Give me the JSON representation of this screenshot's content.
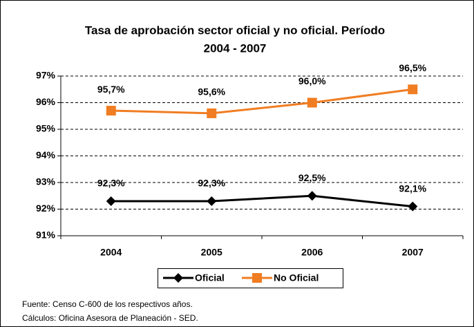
{
  "chart_data": {
    "type": "line",
    "title": "Tasa de aprobación sector oficial y no oficial. Período",
    "subtitle": "2004 - 2007",
    "categories": [
      "2004",
      "2005",
      "2006",
      "2007"
    ],
    "series": [
      {
        "name": "Oficial",
        "color": "#000000",
        "marker": "diamond",
        "values": [
          92.3,
          92.3,
          92.5,
          92.1
        ],
        "value_labels": [
          "92,3%",
          "92,3%",
          "92,5%",
          "92,1%"
        ]
      },
      {
        "name": "No Oficial",
        "color": "#f07d22",
        "marker": "square",
        "values": [
          95.7,
          95.6,
          96.0,
          96.5
        ],
        "value_labels": [
          "95,7%",
          "95,6%",
          "96,0%",
          "96,5%"
        ]
      }
    ],
    "ylim": [
      91,
      97
    ],
    "yticks": [
      {
        "value": 91,
        "label": "91%"
      },
      {
        "value": 92,
        "label": "92%"
      },
      {
        "value": 93,
        "label": "93%"
      },
      {
        "value": 94,
        "label": "94%"
      },
      {
        "value": 95,
        "label": "95%"
      },
      {
        "value": 96,
        "label": "96%"
      },
      {
        "value": 97,
        "label": "97%"
      }
    ],
    "grid": true,
    "legend": "bottom",
    "notes": [
      "Fuente: Censo C-600 de los respectivos años.",
      "Cálculos: Oficina Asesora de Planeación - SED."
    ]
  }
}
